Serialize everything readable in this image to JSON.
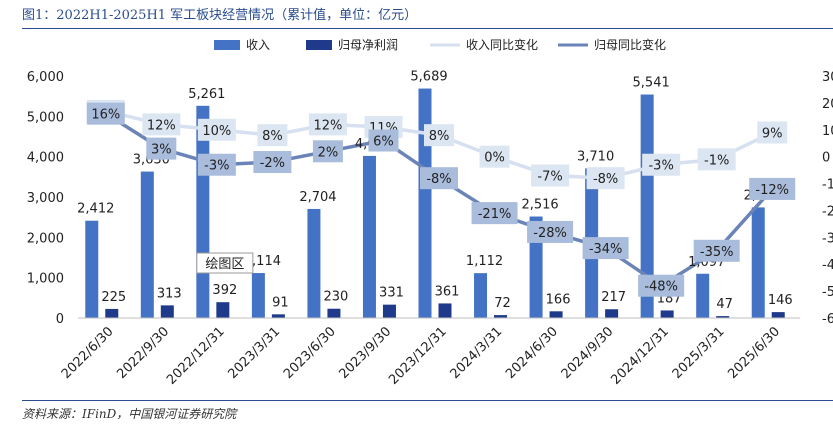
{
  "figure_title": "图1：2022H1-2025H1 军工板块经营情况（累计值，单位：亿元）",
  "source_note": "资料来源：IFinD，中国银河证券研究院",
  "tooltip": "绘图区",
  "colors": {
    "revenue_bar": "#4472c4",
    "profit_bar": "#1f3a8a",
    "revenue_yoy_line": "#d6e0f0",
    "profit_yoy_line": "#6b84b8",
    "revenue_yoy_label_bg": "#dce6f2",
    "profit_yoy_label_bg": "#a9bcdc",
    "rule": "#2a4d8f"
  },
  "chart_data": {
    "type": "bar",
    "categories": [
      "2022/6/30",
      "2022/9/30",
      "2022/12/31",
      "2023/3/31",
      "2023/6/30",
      "2023/9/30",
      "2023/12/31",
      "2024/3/31",
      "2024/6/30",
      "2024/9/30",
      "2024/12/31",
      "2025/3/31",
      "2025/6/30"
    ],
    "series": [
      {
        "name": "收入",
        "kind": "bar",
        "axis": "left",
        "values": [
          2412,
          3630,
          5261,
          1114,
          2704,
          4019,
          5689,
          1112,
          2516,
          3710,
          5541,
          1097,
          2742
        ]
      },
      {
        "name": "归母净利润",
        "kind": "bar",
        "axis": "left",
        "values": [
          225,
          313,
          392,
          91,
          230,
          331,
          361,
          72,
          166,
          217,
          187,
          47,
          146
        ]
      },
      {
        "name": "收入同比变化",
        "kind": "line",
        "axis": "right",
        "unit": "%",
        "values": [
          17,
          12,
          10,
          8,
          12,
          11,
          8,
          0,
          -7,
          -8,
          -3,
          -1,
          9
        ]
      },
      {
        "name": "归母同比变化",
        "kind": "line",
        "axis": "right",
        "unit": "%",
        "values": [
          16,
          3,
          -3,
          -2,
          2,
          6,
          -8,
          -21,
          -28,
          -34,
          -48,
          -35,
          -12
        ]
      }
    ],
    "left_axis": {
      "min": 0,
      "max": 6000,
      "ticks": [
        "0",
        "1,000",
        "2,000",
        "3,000",
        "4,000",
        "5,000",
        "6,000"
      ]
    },
    "right_axis": {
      "min": -60,
      "max": 30,
      "ticks": [
        "30",
        "20",
        "10",
        "0",
        "-1",
        "-2",
        "-3",
        "-4",
        "-5",
        "-6"
      ]
    },
    "legend_position": "top",
    "grid": false
  }
}
